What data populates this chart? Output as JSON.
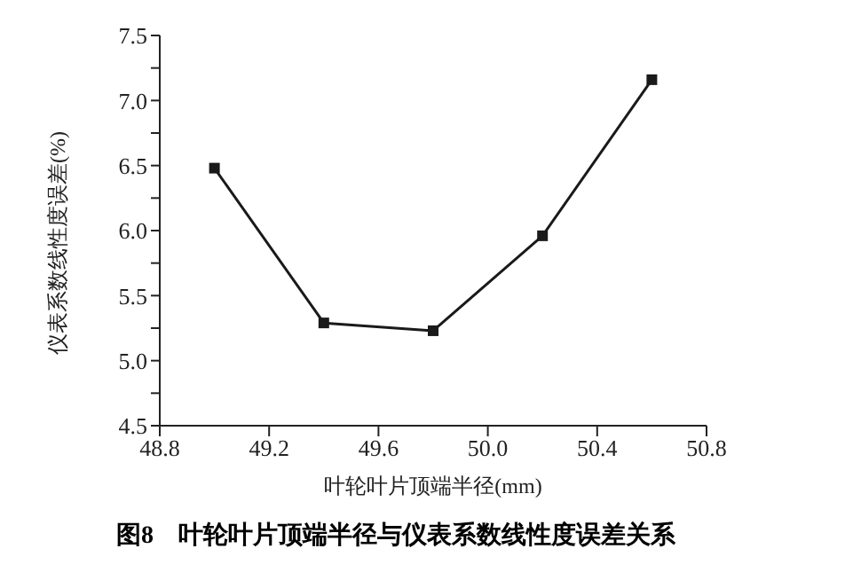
{
  "chart_data": {
    "type": "line",
    "title": "图8　叶轮叶片顶端半径与仪表系数线性度误差关系",
    "xlabel": "叶轮叶片顶端半径(mm)",
    "ylabel": "仪表系数线性度误差(%)",
    "x": [
      49.0,
      49.4,
      49.8,
      50.2,
      50.6
    ],
    "series": [
      {
        "color": "#1a1a1a",
        "values": [
          6.48,
          5.29,
          5.23,
          5.96,
          7.16
        ]
      }
    ],
    "xlim": [
      48.8,
      50.8
    ],
    "xticks": [
      48.8,
      49.2,
      49.6,
      {
        "value": 50,
        "label": "50.0"
      },
      50.4,
      50.8
    ],
    "ylim": [
      4.5,
      7.5
    ],
    "yticks": [
      4.5,
      {
        "value": 4.75,
        "label": null
      },
      {
        "value": 5,
        "label": "5.0"
      },
      {
        "value": 5.25,
        "label": null
      },
      5.5,
      {
        "value": 5.75,
        "label": null
      },
      {
        "value": 6,
        "label": "6.0"
      },
      {
        "value": 6.25,
        "label": null
      },
      6.5,
      {
        "value": 6.75,
        "label": null
      },
      {
        "value": 7,
        "label": "7.0"
      },
      {
        "value": 7.25,
        "label": null
      },
      7.5
    ],
    "grid": false,
    "legend": false,
    "marker": "square",
    "line_style": "solid"
  }
}
